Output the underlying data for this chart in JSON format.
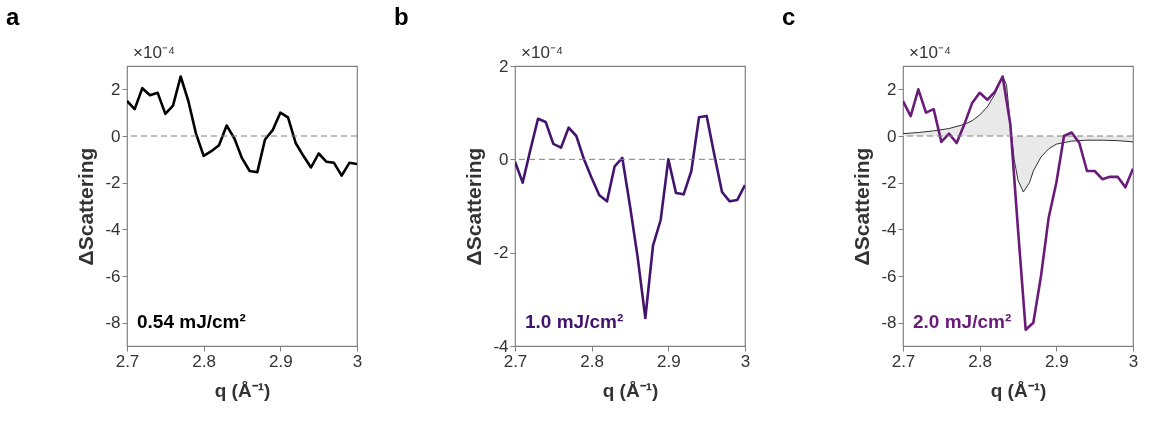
{
  "chart_data": [
    {
      "type": "line",
      "title": "a",
      "xlabel": "q (Å⁻¹)",
      "ylabel": "ΔScattering",
      "annotations": [
        "×10⁻⁴"
      ],
      "xlim": [
        2.7,
        3
      ],
      "xticks": [
        2.7,
        2.8,
        2.9,
        3
      ],
      "ylim": [
        -9,
        3
      ],
      "yticks": [
        -8,
        -6,
        -4,
        -2,
        0,
        2
      ],
      "grid": false,
      "line_style": "solid",
      "ref_lines": [
        {
          "axis": "y",
          "value": 0,
          "color": "#808080",
          "line_style": "dashed"
        }
      ],
      "x": [
        2.7,
        2.71,
        2.72,
        2.73,
        2.74,
        2.75,
        2.76,
        2.77,
        2.78,
        2.79,
        2.8,
        2.81,
        2.82,
        2.83,
        2.84,
        2.85,
        2.86,
        2.87,
        2.88,
        2.89,
        2.9,
        2.91,
        2.92,
        2.93,
        2.94,
        2.95,
        2.96,
        2.97,
        2.98,
        2.99,
        3.0
      ],
      "series": [
        {
          "name": "0.54 mJ/cm²",
          "color": "#000000",
          "values": [
            1.5,
            1.15,
            2.05,
            1.75,
            1.85,
            0.95,
            1.3,
            2.55,
            1.5,
            0.1,
            -0.85,
            -0.65,
            -0.4,
            0.45,
            -0.1,
            -0.95,
            -1.5,
            -1.55,
            -0.15,
            0.25,
            1.0,
            0.8,
            -0.3,
            -0.85,
            -1.35,
            -0.75,
            -1.1,
            -1.15,
            -1.7,
            -1.15,
            -1.2
          ]
        }
      ]
    },
    {
      "type": "line",
      "title": "b",
      "xlabel": "q (Å⁻¹)",
      "ylabel": "ΔScattering",
      "annotations": [
        "×10⁻⁴"
      ],
      "xlim": [
        2.7,
        3
      ],
      "xticks": [
        2.7,
        2.8,
        2.9,
        3
      ],
      "ylim": [
        -4,
        2
      ],
      "yticks": [
        -4,
        -2,
        0,
        2
      ],
      "grid": false,
      "line_style": "solid",
      "ref_lines": [
        {
          "axis": "y",
          "value": 0,
          "color": "#808080",
          "line_style": "dashed"
        }
      ],
      "x": [
        2.7,
        2.71,
        2.72,
        2.73,
        2.74,
        2.75,
        2.76,
        2.77,
        2.78,
        2.79,
        2.8,
        2.81,
        2.82,
        2.83,
        2.84,
        2.85,
        2.86,
        2.87,
        2.88,
        2.89,
        2.9,
        2.91,
        2.92,
        2.93,
        2.94,
        2.95,
        2.96,
        2.97,
        2.98,
        2.99,
        3.0
      ],
      "series": [
        {
          "name": "1.0 mJ/cm²",
          "color": "#42146e",
          "values": [
            -0.05,
            -0.5,
            0.2,
            0.87,
            0.8,
            0.33,
            0.25,
            0.68,
            0.5,
            0.0,
            -0.4,
            -0.77,
            -0.9,
            -0.15,
            0.03,
            -1.0,
            -2.1,
            -3.4,
            -1.85,
            -1.3,
            0.0,
            -0.72,
            -0.75,
            -0.25,
            0.9,
            0.93,
            0.1,
            -0.7,
            -0.9,
            -0.87,
            -0.55
          ]
        }
      ]
    },
    {
      "type": "line",
      "title": "c",
      "xlabel": "q (Å⁻¹)",
      "ylabel": "ΔScattering",
      "annotations": [
        "×10⁻⁴"
      ],
      "xlim": [
        2.7,
        3
      ],
      "xticks": [
        2.7,
        2.8,
        2.9,
        3
      ],
      "ylim": [
        -9,
        3
      ],
      "yticks": [
        -8,
        -6,
        -4,
        -2,
        0,
        2
      ],
      "grid": false,
      "line_style": "solid",
      "ref_lines": [
        {
          "axis": "y",
          "value": 0,
          "color": "#808080",
          "line_style": "dashed"
        }
      ],
      "x": [
        2.7,
        2.71,
        2.72,
        2.73,
        2.74,
        2.75,
        2.76,
        2.77,
        2.78,
        2.79,
        2.8,
        2.81,
        2.82,
        2.83,
        2.84,
        2.85,
        2.86,
        2.87,
        2.88,
        2.89,
        2.9,
        2.91,
        2.92,
        2.93,
        2.94,
        2.95,
        2.96,
        2.97,
        2.98,
        2.99,
        3.0
      ],
      "series": [
        {
          "type": "area",
          "color": "#e0e0e0",
          "x": [
            2.7,
            2.72,
            2.74,
            2.76,
            2.78,
            2.79,
            2.8,
            2.81,
            2.82,
            2.825,
            2.83,
            2.835,
            2.84,
            2.845,
            2.85,
            2.857,
            2.865,
            2.87,
            2.88,
            2.89,
            2.9,
            2.92,
            2.94,
            2.96,
            2.98,
            3.0
          ],
          "values": [
            0.1,
            0.15,
            0.22,
            0.32,
            0.5,
            0.65,
            0.9,
            1.25,
            1.8,
            2.2,
            2.55,
            2.2,
            0.5,
            -1.0,
            -1.9,
            -2.4,
            -2.0,
            -1.5,
            -0.9,
            -0.55,
            -0.35,
            -0.22,
            -0.18,
            -0.18,
            -0.2,
            -0.25
          ]
        },
        {
          "name": "2.0 mJ/cm²",
          "color": "#6a1b7a",
          "values": [
            1.5,
            0.85,
            2.0,
            1.0,
            1.15,
            -0.25,
            0.1,
            -0.3,
            0.5,
            1.4,
            1.85,
            1.55,
            1.9,
            2.55,
            0.5,
            -4.0,
            -8.3,
            -8.0,
            -6.0,
            -3.5,
            -2.0,
            0.0,
            0.15,
            -0.3,
            -1.5,
            -1.5,
            -1.85,
            -1.75,
            -1.75,
            -2.2,
            -1.4
          ]
        }
      ]
    }
  ]
}
